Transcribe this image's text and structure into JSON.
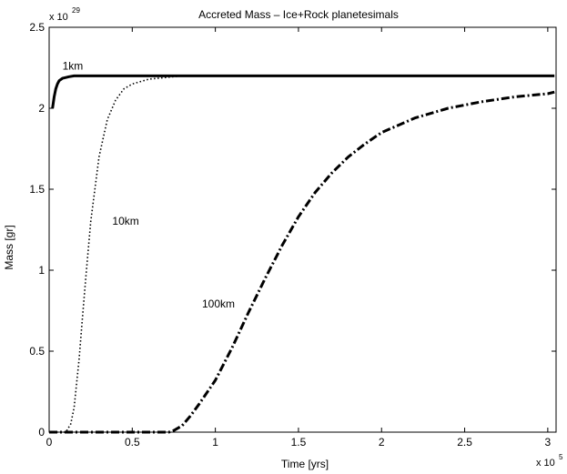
{
  "chart_data": {
    "type": "line",
    "title": "Accreted Mass – Ice+Rock planetesimals",
    "xlabel": "Time [yrs]",
    "ylabel": "Mass [gr]",
    "x_multiplier": {
      "base": "x 10",
      "exp": "5"
    },
    "y_multiplier": {
      "base": "x 10",
      "exp": "29"
    },
    "xlim": [
      0,
      3.05
    ],
    "ylim": [
      0,
      2.5
    ],
    "x_ticks": [
      0,
      0.5,
      1,
      1.5,
      2,
      2.5,
      3
    ],
    "x_tick_labels": [
      "0",
      "0.5",
      "1",
      "1.5",
      "2",
      "2.5",
      "3"
    ],
    "y_ticks": [
      0,
      0.5,
      1,
      1.5,
      2,
      2.5
    ],
    "y_tick_labels": [
      "0",
      "0.5",
      "1",
      "1.5",
      "2",
      "2.5"
    ],
    "grid": false,
    "series": [
      {
        "name": "1km",
        "style": "solid",
        "x": [
          0.02,
          0.03,
          0.04,
          0.05,
          0.06,
          0.08,
          0.1,
          0.12,
          0.15,
          0.2,
          0.3,
          0.5,
          1.0,
          1.5,
          2.0,
          2.5,
          3.04
        ],
        "y": [
          2.0,
          2.07,
          2.12,
          2.15,
          2.17,
          2.185,
          2.19,
          2.195,
          2.2,
          2.2,
          2.2,
          2.2,
          2.2,
          2.2,
          2.2,
          2.2,
          2.2
        ]
      },
      {
        "name": "10km",
        "style": "dotted",
        "x": [
          0.0,
          0.05,
          0.1,
          0.13,
          0.15,
          0.18,
          0.2,
          0.22,
          0.25,
          0.3,
          0.35,
          0.4,
          0.45,
          0.5,
          0.6,
          0.7,
          0.8,
          0.9,
          1.0,
          1.2,
          1.5,
          2.0
        ],
        "y": [
          0.0,
          0.0,
          0.0,
          0.05,
          0.15,
          0.45,
          0.7,
          0.95,
          1.3,
          1.7,
          1.93,
          2.05,
          2.12,
          2.15,
          2.18,
          2.19,
          2.2,
          2.2,
          2.2,
          2.2,
          2.2,
          2.2
        ]
      },
      {
        "name": "100km",
        "style": "dashdot",
        "x": [
          0.0,
          0.3,
          0.6,
          0.72,
          0.75,
          0.8,
          0.85,
          0.9,
          1.0,
          1.1,
          1.2,
          1.3,
          1.4,
          1.5,
          1.6,
          1.7,
          1.8,
          1.9,
          2.0,
          2.2,
          2.4,
          2.6,
          2.8,
          3.0,
          3.04
        ],
        "y": [
          0.0,
          0.0,
          0.0,
          0.0,
          0.01,
          0.04,
          0.1,
          0.17,
          0.32,
          0.52,
          0.74,
          0.95,
          1.15,
          1.33,
          1.48,
          1.6,
          1.7,
          1.78,
          1.85,
          1.94,
          2.0,
          2.04,
          2.07,
          2.09,
          2.1
        ]
      }
    ],
    "annotations": [
      {
        "text": "1km",
        "x": 0.08,
        "y": 2.24
      },
      {
        "text": "10km",
        "x": 0.38,
        "y": 1.28
      },
      {
        "text": "100km",
        "x": 0.92,
        "y": 0.77
      }
    ]
  }
}
